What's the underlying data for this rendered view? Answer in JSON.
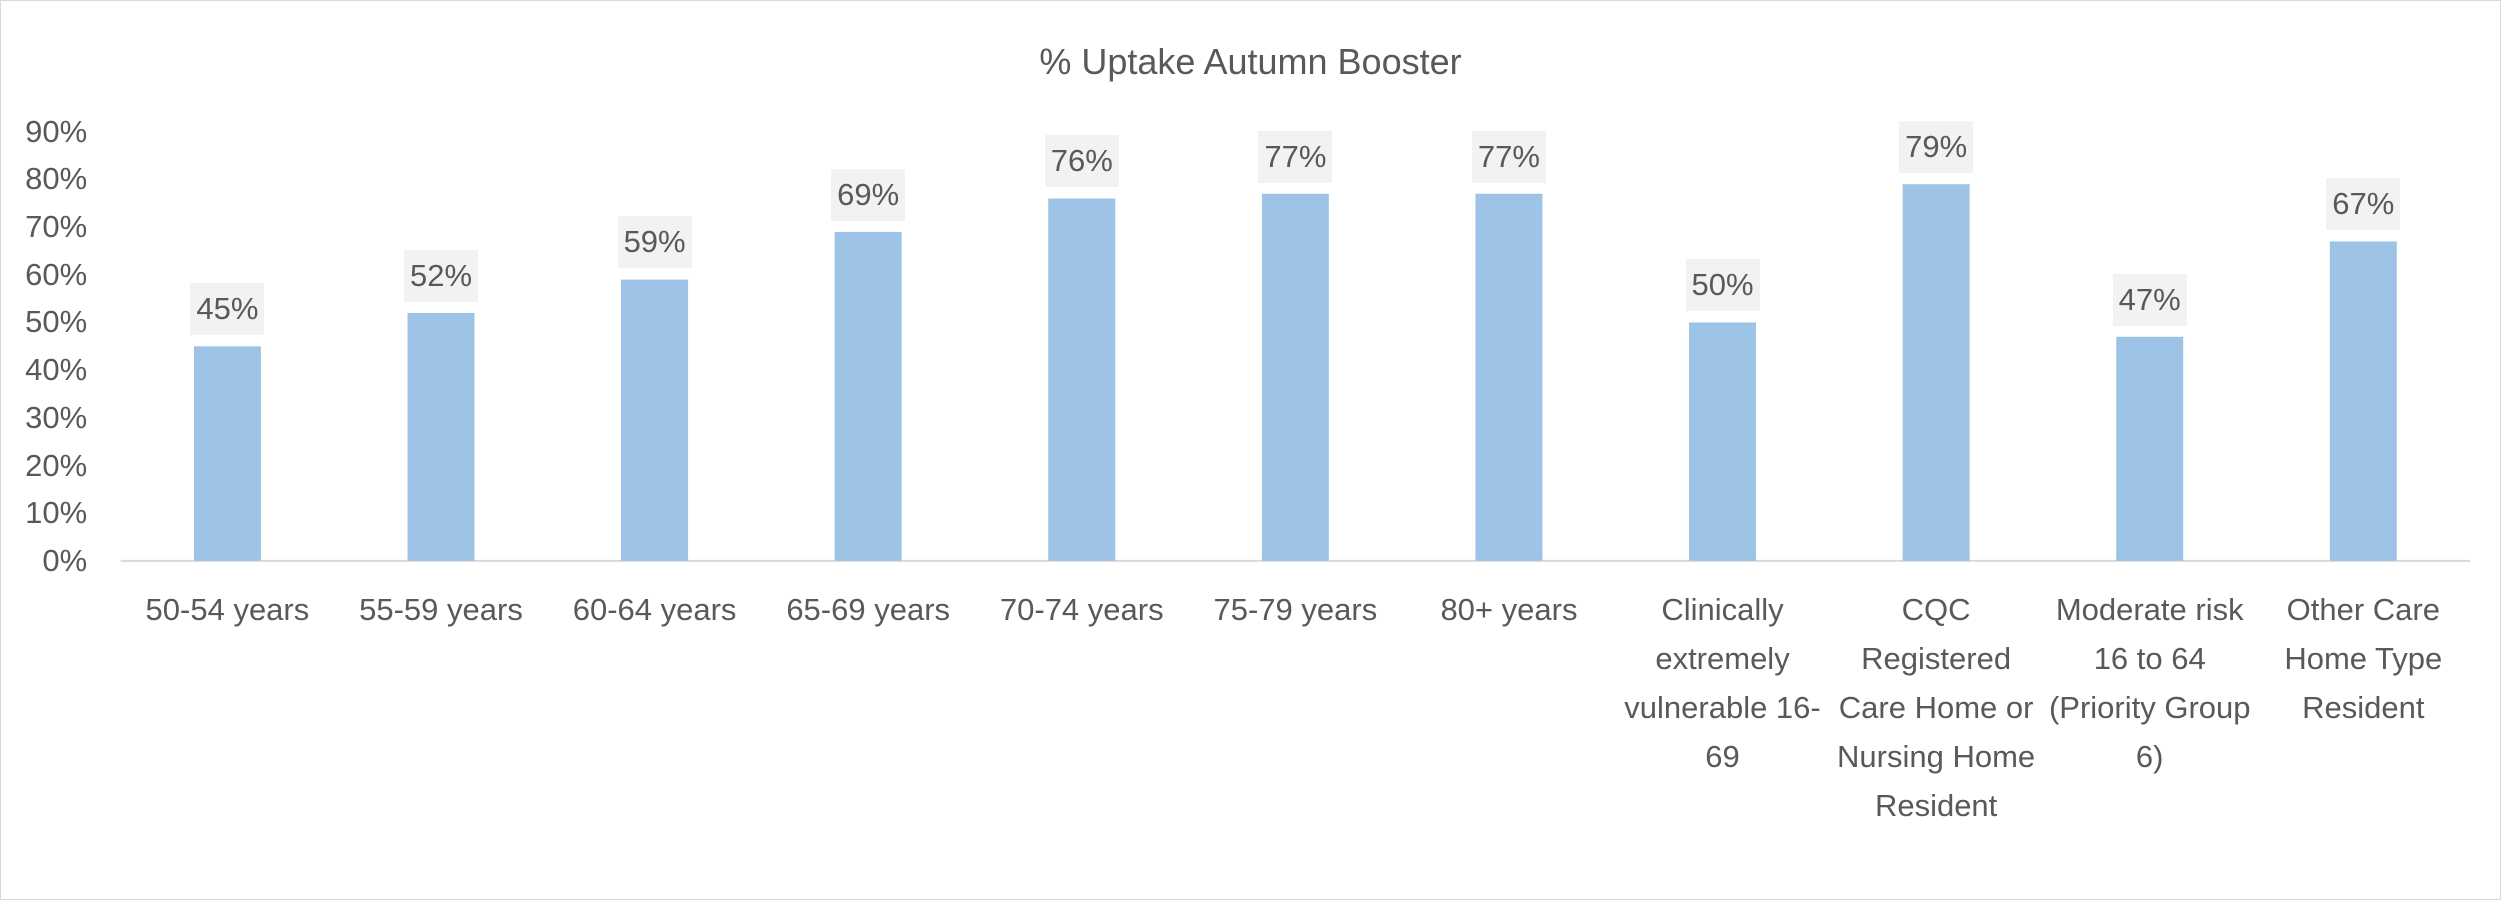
{
  "chart_data": {
    "type": "bar",
    "title": "% Uptake Autumn Booster",
    "categories": [
      "50-54 years",
      "55-59 years",
      "60-64 years",
      "65-69 years",
      "70-74 years",
      "75-79 years",
      "80+ years",
      "Clinically extremely vulnerable 16-69",
      "CQC Registered Care Home or Nursing Home Resident",
      "Moderate risk 16 to 64 (Priority Group 6)",
      "Other Care Home Type Resident"
    ],
    "values": [
      45,
      52,
      59,
      69,
      76,
      77,
      77,
      50,
      79,
      47,
      67
    ],
    "value_labels": [
      "45%",
      "52%",
      "59%",
      "69%",
      "76%",
      "77%",
      "77%",
      "50%",
      "79%",
      "47%",
      "67%"
    ],
    "color": "#9dc3e6",
    "ylim": [
      0,
      90
    ],
    "yticks": [
      {
        "value": 0,
        "label": "0%"
      },
      {
        "value": 10,
        "label": "10%"
      },
      {
        "value": 20,
        "label": "20%"
      },
      {
        "value": 30,
        "label": "30%"
      },
      {
        "value": 40,
        "label": "40%"
      },
      {
        "value": 50,
        "label": "50%"
      },
      {
        "value": 60,
        "label": "60%"
      },
      {
        "value": 70,
        "label": "70%"
      },
      {
        "value": 80,
        "label": "80%"
      },
      {
        "value": 90,
        "label": "90%"
      }
    ],
    "grid": false
  }
}
